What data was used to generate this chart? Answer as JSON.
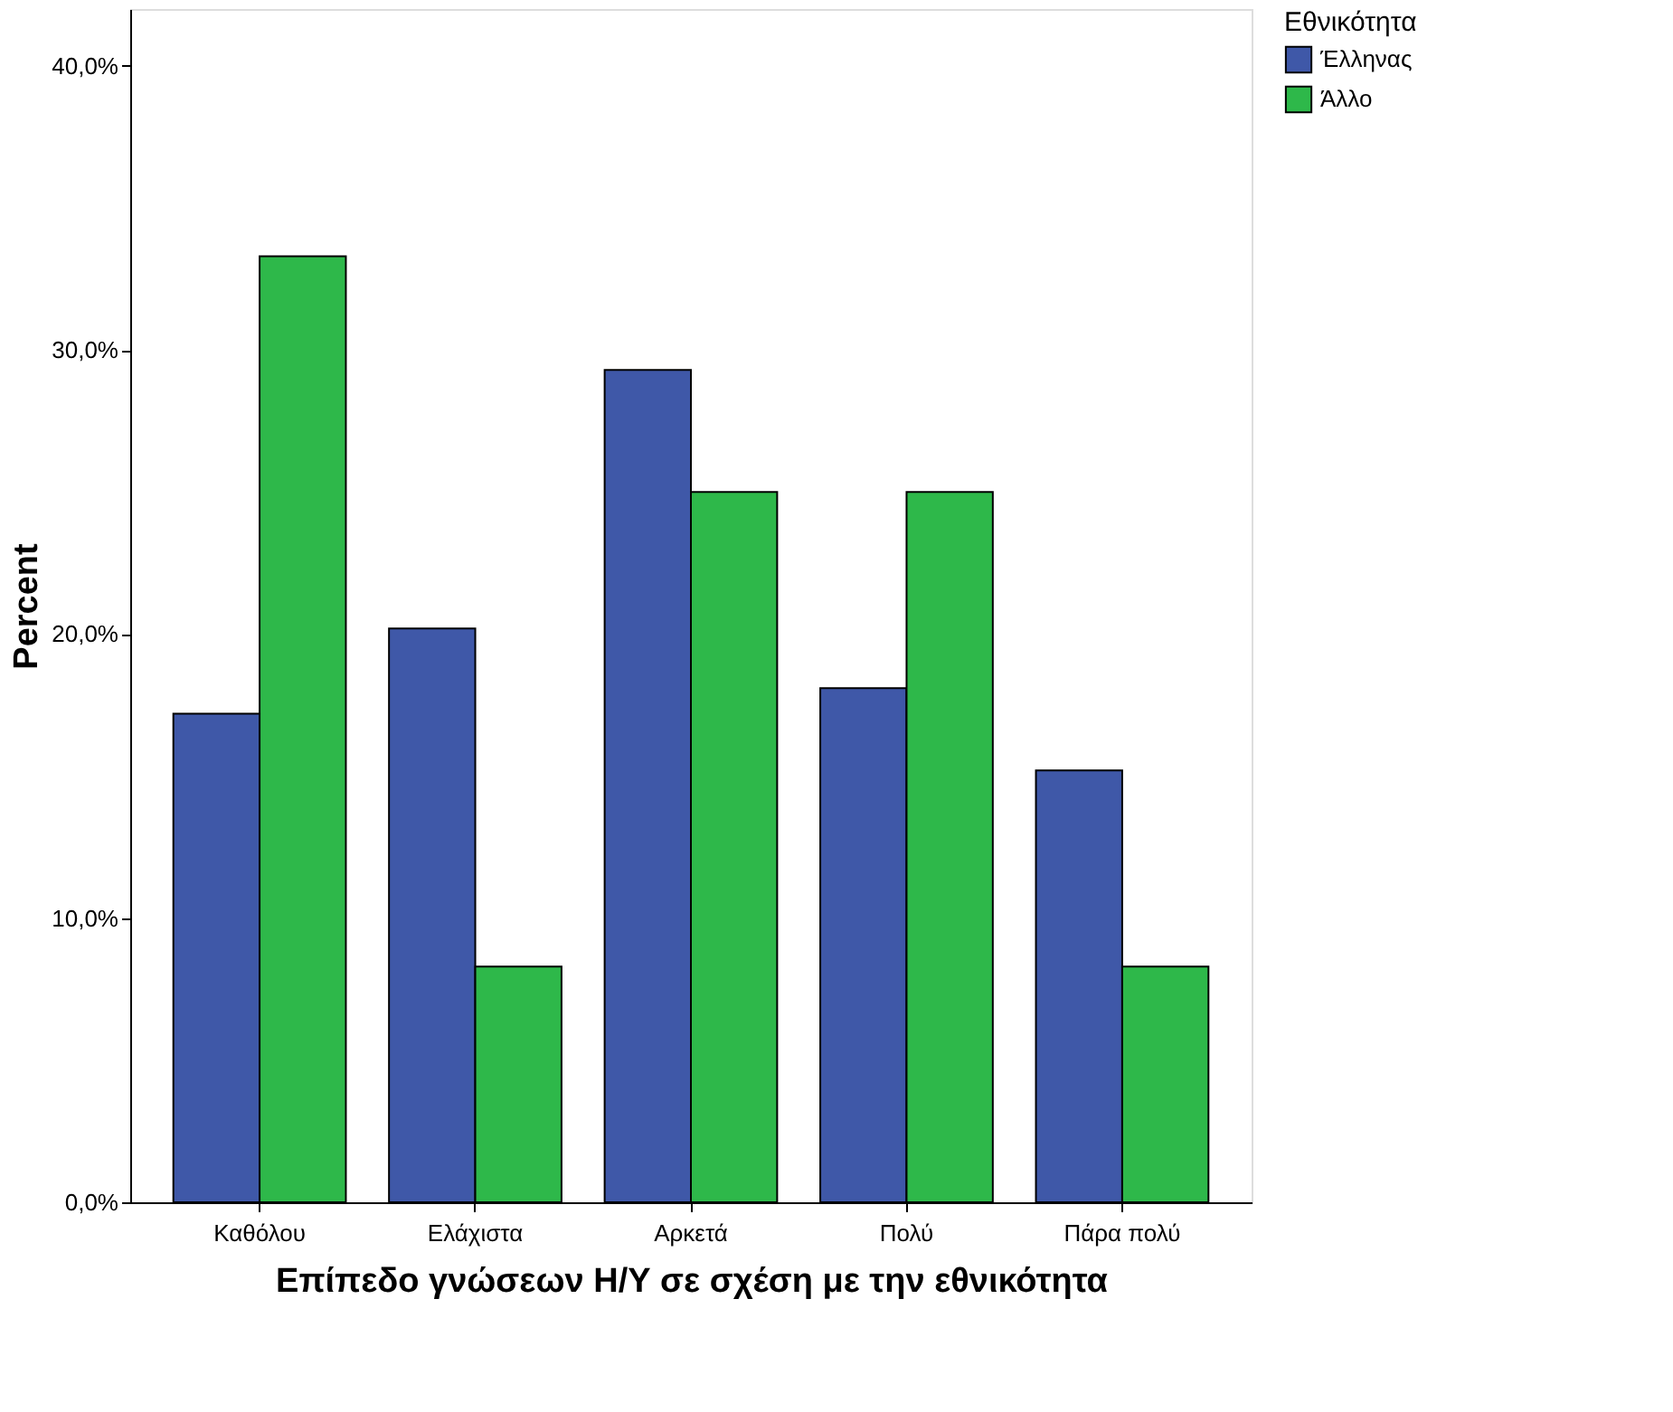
{
  "chart_data": {
    "type": "bar",
    "xlabel": "Επίπεδο γνώσεων Η/Υ  σε σχέση με την εθνικότητα",
    "ylabel": "Percent",
    "legend_title": "Εθνικότητα",
    "categories": [
      "Καθόλου",
      "Ελάχιστα",
      "Αρκετά",
      "Πολύ",
      "Πάρα πολύ"
    ],
    "series": [
      {
        "name": "Έλληνας",
        "color": "#3f58a8",
        "values": [
          17.2,
          20.2,
          29.3,
          18.1,
          15.2
        ]
      },
      {
        "name": "Άλλο",
        "color": "#2eb84a",
        "values": [
          33.3,
          8.3,
          25.0,
          25.0,
          8.3
        ]
      }
    ],
    "ylim": [
      0,
      42
    ],
    "yticks": [
      {
        "value": 0,
        "label": "0,0%"
      },
      {
        "value": 10,
        "label": "10,0%"
      },
      {
        "value": 20,
        "label": "20,0%"
      },
      {
        "value": 30,
        "label": "30,0%"
      },
      {
        "value": 40,
        "label": "40,0%"
      }
    ],
    "grid": false,
    "legend": "top right"
  }
}
